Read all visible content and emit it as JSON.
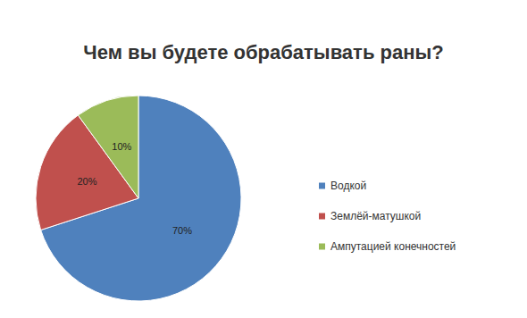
{
  "chart_data": {
    "type": "pie",
    "title": "Чем вы будете обрабатывать раны?",
    "categories": [
      "Водкой",
      "Землёй-матушкой",
      "Ампутацией конечностей"
    ],
    "values": [
      70,
      20,
      10
    ],
    "value_labels": [
      "70%",
      "20%",
      "10%"
    ],
    "colors": [
      "#4f81bd",
      "#c0504d",
      "#9bbb59"
    ],
    "data_labels": true,
    "legend": "right"
  }
}
